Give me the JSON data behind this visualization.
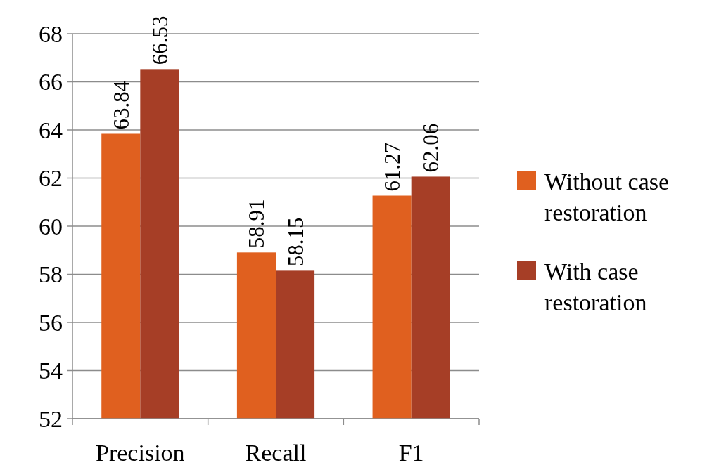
{
  "chart_data": {
    "type": "bar",
    "categories": [
      "Precision",
      "Recall",
      "F1"
    ],
    "series": [
      {
        "name": "Without case restoration",
        "color": "#e0601f",
        "values": [
          63.84,
          58.91,
          61.27
        ]
      },
      {
        "name": "With case restoration",
        "color": "#a63e26",
        "values": [
          66.53,
          58.15,
          62.06
        ]
      }
    ],
    "ylim": [
      52,
      68
    ],
    "yticks": [
      52,
      54,
      56,
      58,
      60,
      62,
      64,
      66,
      68
    ],
    "grid": "y",
    "legend": "right",
    "data_labels": true
  }
}
